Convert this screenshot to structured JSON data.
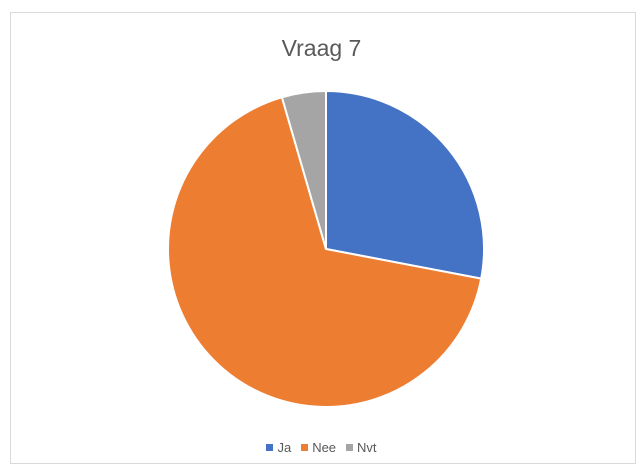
{
  "chart_data": {
    "type": "pie",
    "title": "Vraag 7",
    "categories": [
      "Ja",
      "Nee",
      "Nvt"
    ],
    "values": [
      28,
      67.5,
      4.5
    ],
    "colors": [
      "#4472c4",
      "#ed7d31",
      "#a5a5a5"
    ],
    "start_angle": "12 o'clock",
    "direction": "clockwise",
    "legend": "bottom"
  }
}
